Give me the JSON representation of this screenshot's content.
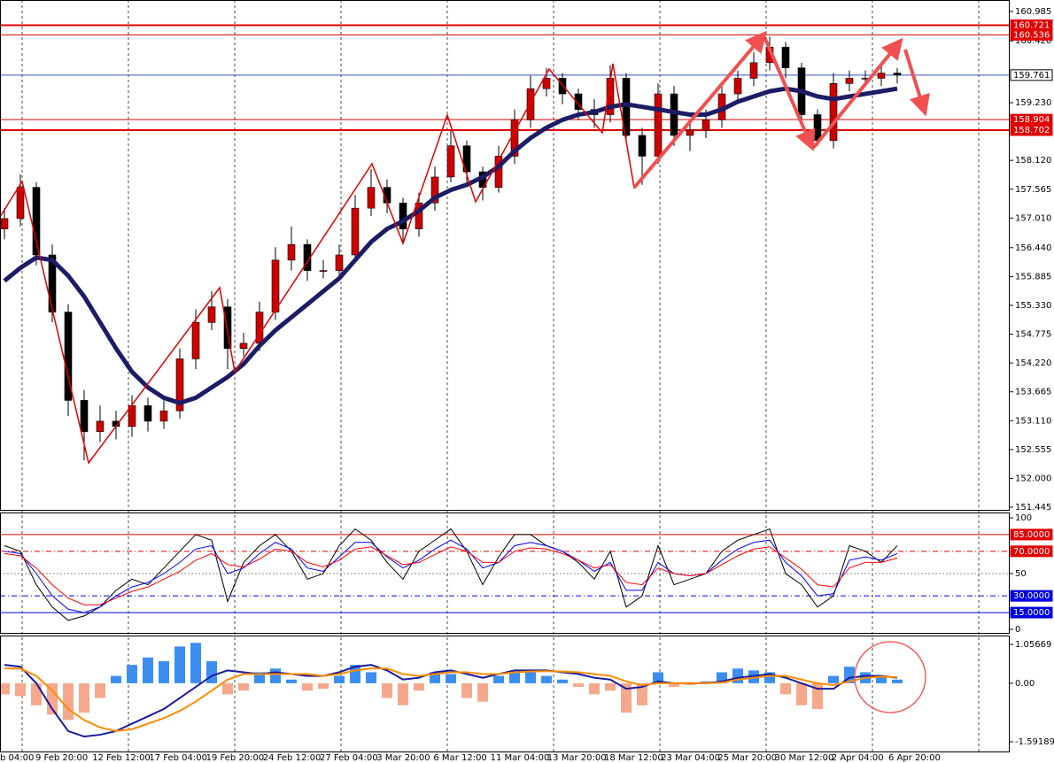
{
  "chart_data": [
    {
      "type": "candlestick",
      "open": [
        156.8,
        157.0,
        157.6,
        156.3,
        155.2,
        153.5,
        152.9,
        153.1,
        153.0,
        153.4,
        153.1,
        153.3,
        154.3,
        155.0,
        155.3,
        154.5,
        154.6,
        155.2,
        156.2,
        156.5,
        156.0,
        156.0,
        156.3,
        157.2,
        157.6,
        157.3,
        156.8,
        157.3,
        157.8,
        158.4,
        157.9,
        157.6,
        158.2,
        158.9,
        159.5,
        159.7,
        159.4,
        159.1,
        159.0,
        159.7,
        158.6,
        158.2,
        159.4,
        158.6,
        158.7,
        158.9,
        159.4,
        159.7,
        160.0,
        160.3,
        159.9,
        159.0,
        158.5,
        159.6,
        159.7,
        159.7,
        159.8
      ],
      "high": [
        157.2,
        157.85,
        157.7,
        156.5,
        155.35,
        153.7,
        153.4,
        153.3,
        153.6,
        153.55,
        153.5,
        154.5,
        155.25,
        155.6,
        155.45,
        154.8,
        155.4,
        156.45,
        156.85,
        156.6,
        156.2,
        156.5,
        157.45,
        157.95,
        157.75,
        157.4,
        157.5,
        158.0,
        158.7,
        158.5,
        158.0,
        158.4,
        159.1,
        159.75,
        159.9,
        159.8,
        159.5,
        159.3,
        159.95,
        159.8,
        158.75,
        159.6,
        159.55,
        158.9,
        159.1,
        159.55,
        159.85,
        160.2,
        160.5,
        160.4,
        160.0,
        159.1,
        159.8,
        159.85,
        159.85,
        159.95,
        159.9
      ],
      "low": [
        156.6,
        156.85,
        156.1,
        155.0,
        153.2,
        152.35,
        152.7,
        152.75,
        152.8,
        152.9,
        152.95,
        153.15,
        154.1,
        154.85,
        154.1,
        154.35,
        154.45,
        155.05,
        156.0,
        155.8,
        155.85,
        155.85,
        156.15,
        157.05,
        157.1,
        156.5,
        156.65,
        157.15,
        157.7,
        157.7,
        157.35,
        157.5,
        158.05,
        158.75,
        159.35,
        159.2,
        158.9,
        158.75,
        158.85,
        158.45,
        157.65,
        158.05,
        158.4,
        158.3,
        158.55,
        158.75,
        159.25,
        159.55,
        159.85,
        159.7,
        158.85,
        158.4,
        158.35,
        159.45,
        159.55,
        159.55,
        159.6
      ],
      "close": [
        157.0,
        157.6,
        156.3,
        155.2,
        153.5,
        152.9,
        153.1,
        153.0,
        153.4,
        153.1,
        153.3,
        154.3,
        155.0,
        155.3,
        154.5,
        154.6,
        155.2,
        156.2,
        156.5,
        156.0,
        156.0,
        156.3,
        157.2,
        157.6,
        157.3,
        156.8,
        157.3,
        157.8,
        158.4,
        157.9,
        157.6,
        158.2,
        158.9,
        159.5,
        159.7,
        159.4,
        159.1,
        159.0,
        159.7,
        158.6,
        158.2,
        159.4,
        158.6,
        158.7,
        158.9,
        159.4,
        159.7,
        160.0,
        160.3,
        159.9,
        159.0,
        158.5,
        159.6,
        159.7,
        159.7,
        159.8,
        159.76
      ],
      "up_color": "#cc0000",
      "down_color": "#000000",
      "overlays": [
        {
          "color": "#1c1c66",
          "values": [
            155.8,
            156.05,
            156.25,
            156.2,
            155.9,
            155.5,
            155.0,
            154.5,
            154.05,
            153.75,
            153.55,
            153.45,
            153.55,
            153.75,
            153.95,
            154.2,
            154.55,
            154.85,
            155.1,
            155.35,
            155.6,
            155.85,
            156.2,
            156.55,
            156.8,
            156.95,
            157.15,
            157.4,
            157.55,
            157.65,
            157.8,
            158.0,
            158.3,
            158.55,
            158.75,
            158.9,
            159.0,
            159.05,
            159.15,
            159.2,
            159.15,
            159.1,
            159.05,
            159.0,
            159.0,
            159.1,
            159.25,
            159.35,
            159.45,
            159.5,
            159.45,
            159.35,
            159.3,
            159.35,
            159.4,
            159.45,
            159.5
          ]
        }
      ],
      "ylim": [
        151.445,
        160.985
      ],
      "yticks": [
        160.985,
        {
          "value": 160.42,
          "label": "160.420"
        },
        {
          "value": 159.23,
          "label": "159.230"
        },
        {
          "value": 158.12,
          "label": "158.120"
        },
        157.565,
        {
          "value": 157.01,
          "label": "157.010"
        },
        {
          "value": 156.44,
          "label": "156.440"
        },
        155.885,
        {
          "value": 155.33,
          "label": "155.330"
        },
        154.775,
        {
          "value": 154.22,
          "label": "154.220"
        },
        153.665,
        {
          "value": 153.11,
          "label": "153.110"
        },
        152.555,
        {
          "value": 152,
          "label": "152.000"
        },
        151.445
      ],
      "hlines": [
        {
          "value": 160.721,
          "color": "#e00000",
          "width": 2
        },
        {
          "value": 160.536,
          "color": "#e00000",
          "width": 1
        },
        {
          "value": 159.761,
          "color": "#3050d0",
          "width": 1,
          "box": "#ffffff"
        },
        {
          "value": 158.904,
          "color": "#e00000",
          "width": 1
        },
        {
          "value": 158.702,
          "color": "#e00000",
          "width": 2
        }
      ],
      "x_labels": [
        "b 04:00",
        "9 Feb 20:00",
        "12 Feb 12:00",
        "17 Feb 04:00",
        "19 Feb 20:00",
        "24 Feb 12:00",
        "27 Feb 04:00",
        "3 Mar 20:00",
        "6 Mar 12:00",
        "11 Mar 04:00",
        "13 Mar 20:00",
        "18 Mar 12:00",
        "23 Mar 04:00",
        "25 Mar 20:00",
        "30 Mar 12:00",
        "2 Apr 04:00",
        "6 Apr 20:00"
      ]
    },
    {
      "type": "line",
      "ylim": [
        -4,
        104
      ],
      "yticks": [
        0,
        50,
        100
      ],
      "levels": [
        {
          "value": 85,
          "label": "85.0000",
          "color": "#e00000",
          "dashed": false
        },
        {
          "value": 70,
          "label": "70.0000",
          "color": "#e00000",
          "dashed": true
        },
        {
          "value": 30,
          "label": "30.0000",
          "color": "#0000e0",
          "dashed": true
        },
        {
          "value": 15,
          "label": "15.0000",
          "color": "#0000e0",
          "dashed": false
        }
      ],
      "series": [
        {
          "color": "#000000",
          "values": [
            75,
            70,
            40,
            20,
            8,
            12,
            20,
            35,
            45,
            40,
            55,
            70,
            85,
            80,
            25,
            60,
            75,
            85,
            70,
            45,
            50,
            75,
            90,
            80,
            60,
            45,
            70,
            80,
            90,
            70,
            40,
            65,
            85,
            85,
            75,
            70,
            60,
            45,
            70,
            20,
            30,
            75,
            40,
            45,
            50,
            70,
            80,
            85,
            90,
            50,
            40,
            20,
            30,
            75,
            70,
            60,
            75
          ]
        },
        {
          "color": "#0000ff",
          "values": [
            70,
            68,
            50,
            30,
            18,
            15,
            20,
            30,
            38,
            42,
            50,
            60,
            72,
            75,
            50,
            55,
            68,
            78,
            72,
            55,
            52,
            65,
            78,
            78,
            65,
            55,
            62,
            72,
            80,
            72,
            55,
            60,
            75,
            78,
            75,
            70,
            62,
            52,
            60,
            35,
            35,
            60,
            50,
            48,
            50,
            62,
            72,
            78,
            80,
            60,
            48,
            30,
            32,
            62,
            65,
            62,
            68
          ]
        },
        {
          "color": "#ff0000",
          "values": [
            68,
            66,
            55,
            40,
            28,
            22,
            22,
            28,
            34,
            38,
            45,
            52,
            62,
            68,
            58,
            56,
            63,
            72,
            70,
            60,
            56,
            62,
            72,
            74,
            66,
            58,
            60,
            67,
            74,
            70,
            60,
            60,
            70,
            73,
            72,
            68,
            62,
            55,
            58,
            42,
            40,
            55,
            50,
            48,
            50,
            58,
            66,
            72,
            74,
            64,
            54,
            40,
            38,
            55,
            60,
            60,
            64
          ]
        }
      ]
    },
    {
      "type": "macd",
      "ylim": [
        -1.88,
        1.25
      ],
      "yticks": [
        1.05669,
        {
          "value": 0,
          "label": "0.00"
        },
        -1.59189
      ],
      "histogram": {
        "pos_color": "#3c8ef0",
        "neg_color": "#f5a88c",
        "values": [
          -0.3,
          -0.35,
          -0.6,
          -0.85,
          -1.0,
          -0.8,
          -0.4,
          0.2,
          0.5,
          0.7,
          0.6,
          1.0,
          1.1,
          0.6,
          -0.3,
          -0.2,
          0.3,
          0.4,
          0.1,
          -0.2,
          -0.15,
          0.2,
          0.5,
          0.3,
          -0.4,
          -0.6,
          -0.2,
          0.3,
          0.25,
          -0.4,
          -0.5,
          0.2,
          0.35,
          0.3,
          0.2,
          0.1,
          -0.1,
          -0.3,
          -0.2,
          -0.8,
          -0.6,
          0.3,
          -0.1,
          -0.05,
          0.05,
          0.3,
          0.4,
          0.35,
          0.3,
          -0.3,
          -0.6,
          -0.7,
          0.2,
          0.45,
          0.3,
          0.2,
          0.1
        ]
      },
      "series": [
        {
          "color": "#1a1a9c",
          "values": [
            0.5,
            0.45,
            0.0,
            -0.7,
            -1.3,
            -1.45,
            -1.4,
            -1.3,
            -1.1,
            -0.9,
            -0.7,
            -0.4,
            -0.1,
            0.2,
            0.35,
            0.3,
            0.25,
            0.3,
            0.25,
            0.2,
            0.2,
            0.3,
            0.45,
            0.5,
            0.35,
            0.1,
            0.15,
            0.3,
            0.35,
            0.25,
            0.15,
            0.25,
            0.35,
            0.35,
            0.35,
            0.3,
            0.25,
            0.15,
            0.1,
            -0.15,
            -0.1,
            0.05,
            0.0,
            0.0,
            0.0,
            0.05,
            0.15,
            0.2,
            0.25,
            0.15,
            0.0,
            -0.15,
            -0.15,
            0.15,
            0.2,
            0.2,
            0.15
          ]
        },
        {
          "color": "#ff8c00",
          "values": [
            0.4,
            0.4,
            0.2,
            -0.2,
            -0.7,
            -1.0,
            -1.2,
            -1.3,
            -1.25,
            -1.1,
            -0.95,
            -0.75,
            -0.5,
            -0.2,
            0.1,
            0.25,
            0.25,
            0.25,
            0.25,
            0.25,
            0.2,
            0.25,
            0.35,
            0.4,
            0.4,
            0.25,
            0.2,
            0.25,
            0.3,
            0.3,
            0.25,
            0.25,
            0.3,
            0.32,
            0.33,
            0.32,
            0.3,
            0.25,
            0.2,
            0.05,
            -0.05,
            0.0,
            0.0,
            0.0,
            0.0,
            0.02,
            0.1,
            0.15,
            0.2,
            0.2,
            0.1,
            0.0,
            -0.05,
            0.05,
            0.15,
            0.18,
            0.17
          ]
        }
      ]
    }
  ]
}
